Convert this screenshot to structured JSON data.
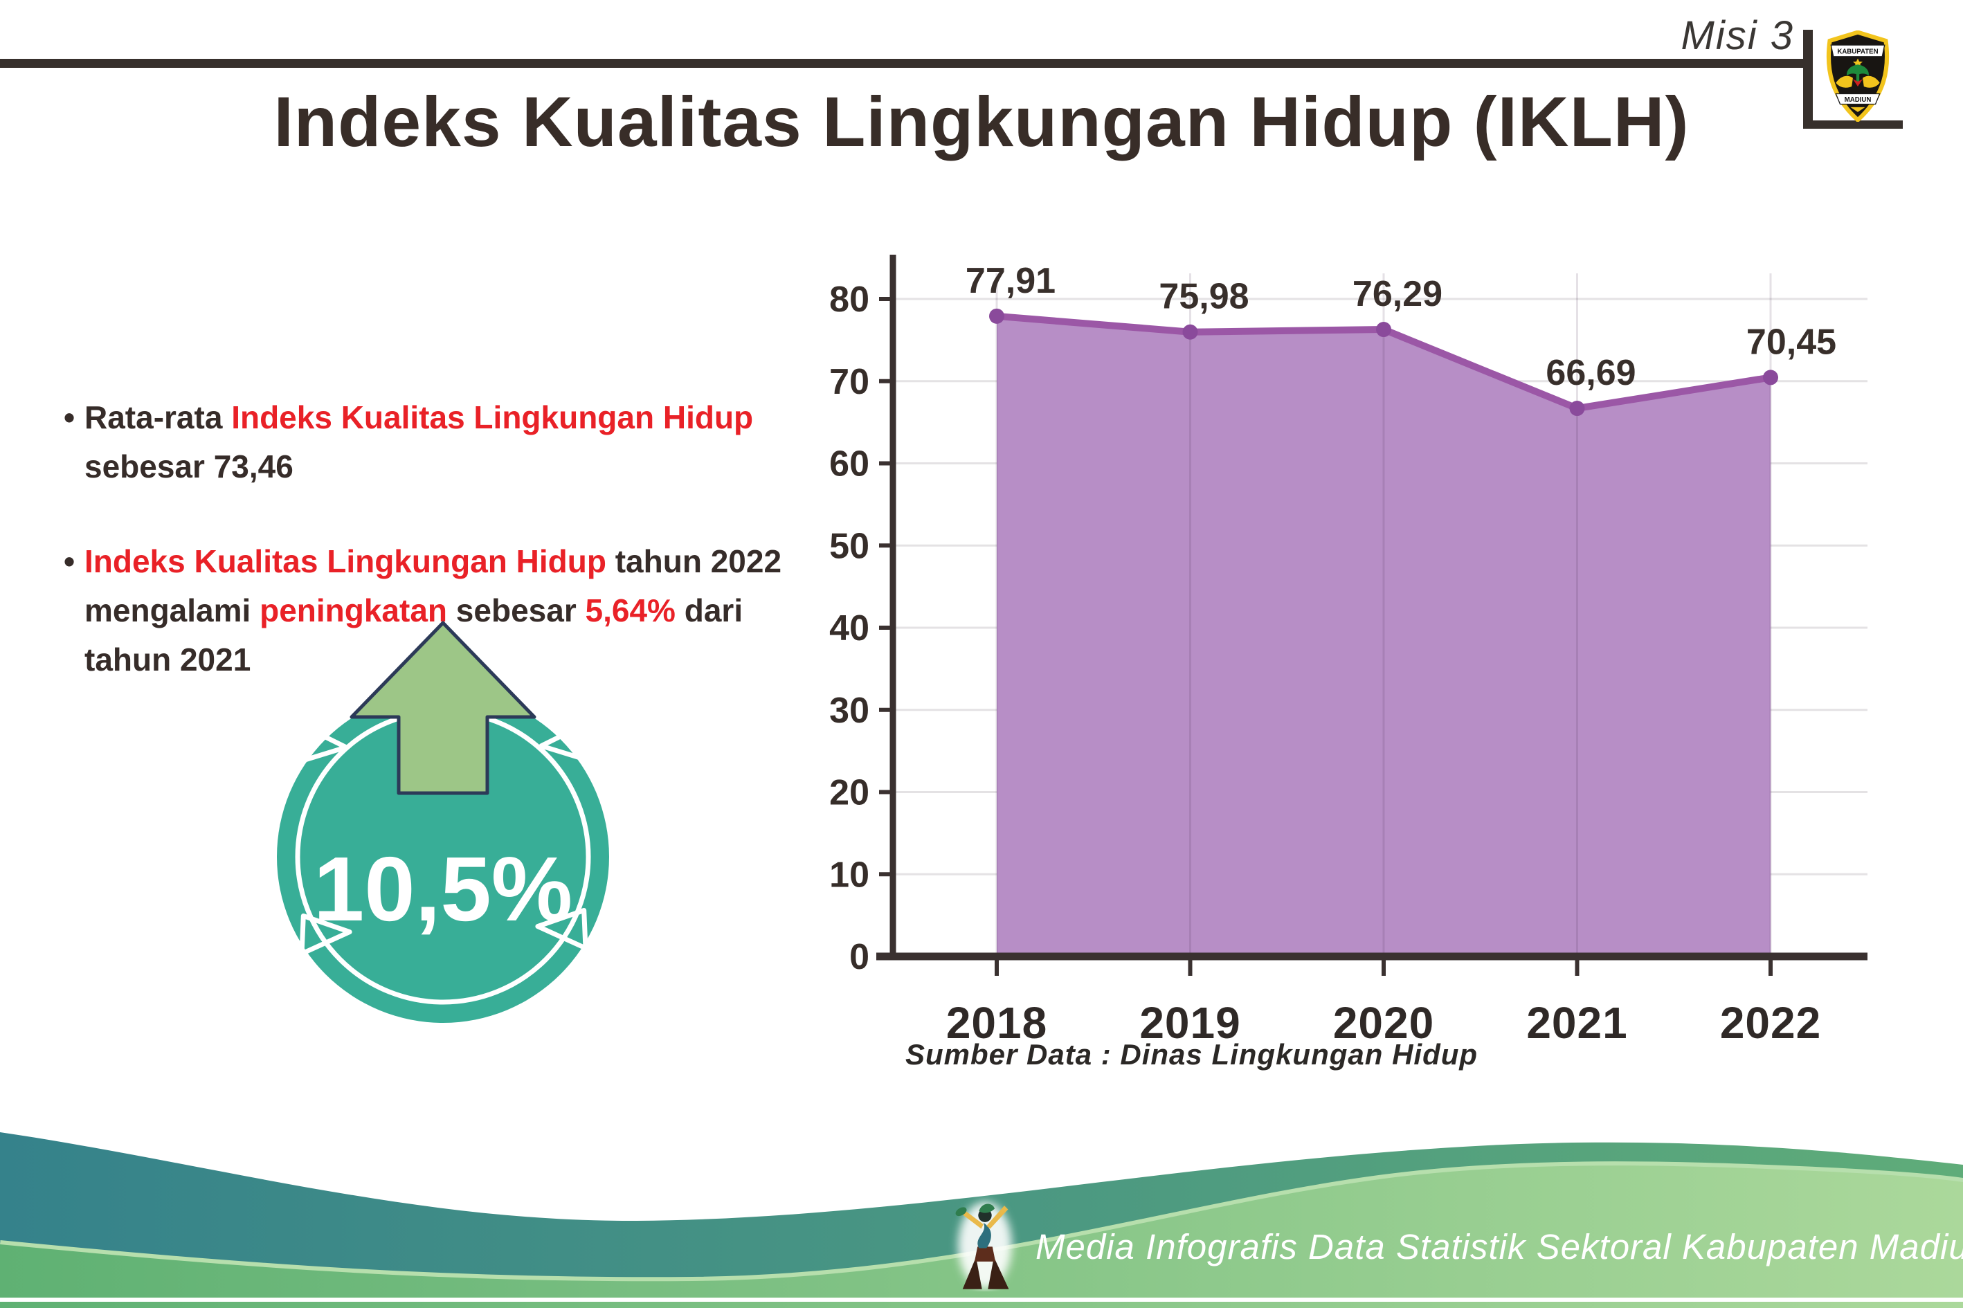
{
  "header": {
    "misi_label": "Misi 3",
    "logo_top_text": "KABUPATEN",
    "logo_bottom_text": "MADIUN"
  },
  "title": "Indeks Kualitas Lingkungan Hidup (IKLH)",
  "bullets": {
    "dot": "•",
    "b1_dark1": "Rata-rata ",
    "b1_red": "Indeks Kualitas Lingkungan Hidup",
    "b1_dark2": " sebesar 73,46",
    "b2_red1": "Indeks Kualitas Lingkungan Hidup",
    "b2_dark1": " tahun 2022 mengalami ",
    "b2_red2": "peningkatan",
    "b2_dark2": " sebesar ",
    "b2_red3": "5,64%",
    "b2_dark3": " dari tahun 2021"
  },
  "badge": {
    "percent_label": "10,5%",
    "circle_color": "#38ae97",
    "arrow_color": "#9dc687",
    "arrow_outline": "#2c3a58"
  },
  "chart_data": {
    "type": "area",
    "title": "",
    "xlabel": "",
    "ylabel": "",
    "categories": [
      "2018",
      "2019",
      "2020",
      "2021",
      "2022"
    ],
    "values": [
      77.91,
      75.98,
      76.29,
      66.69,
      70.45
    ],
    "value_labels": [
      "77,91",
      "75,98",
      "76,29",
      "66,69",
      "70,45"
    ],
    "ylim": [
      0,
      85
    ],
    "yticks": [
      0,
      10,
      20,
      30,
      40,
      50,
      60,
      70,
      80
    ],
    "grid": true,
    "legend_position": "none",
    "line_color": "#9b57a6",
    "fill_color": "#b78ec6",
    "marker_color": "#8a4a9b",
    "axis_color": "#3a3130",
    "source_note": "Sumber Data : Dinas Lingkungan Hidup"
  },
  "footer": {
    "credit": "Media Infografis Data Statistik Sektoral Kabupaten Madiun |"
  }
}
